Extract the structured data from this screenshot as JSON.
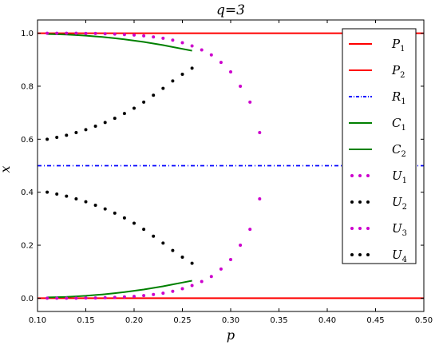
{
  "chart_data": {
    "type": "line",
    "title": "q=3",
    "xlabel": "p",
    "ylabel": "x",
    "xlim": [
      0.1,
      0.5
    ],
    "ylim": [
      -0.05,
      1.05
    ],
    "xticks": [
      "0.10",
      "0.15",
      "0.20",
      "0.25",
      "0.30",
      "0.35",
      "0.40",
      "0.45",
      "0.50"
    ],
    "yticks": [
      "0.0",
      "0.2",
      "0.4",
      "0.6",
      "0.8",
      "1.0"
    ],
    "legend_position": "right",
    "series": [
      {
        "name": "P1",
        "label_main": "P",
        "label_sub": "1",
        "style": "solid",
        "color": "#ff0000",
        "x": [
          0.1,
          0.5
        ],
        "y": [
          1.0,
          1.0
        ]
      },
      {
        "name": "P2",
        "label_main": "P",
        "label_sub": "2",
        "style": "solid",
        "color": "#ff0000",
        "x": [
          0.1,
          0.5
        ],
        "y": [
          0.0,
          0.0
        ]
      },
      {
        "name": "R1",
        "label_main": "R",
        "label_sub": "1",
        "style": "dashdot",
        "color": "#0000ff",
        "x": [
          0.1,
          0.5
        ],
        "y": [
          0.5,
          0.5
        ]
      },
      {
        "name": "C1",
        "label_main": "C",
        "label_sub": "1",
        "style": "solid",
        "color": "#008000",
        "x": [
          0.11,
          0.12,
          0.13,
          0.14,
          0.15,
          0.16,
          0.17,
          0.18,
          0.19,
          0.2,
          0.21,
          0.22,
          0.23,
          0.24,
          0.25,
          0.26
        ],
        "y": [
          0.997,
          0.996,
          0.995,
          0.993,
          0.991,
          0.988,
          0.985,
          0.981,
          0.977,
          0.972,
          0.967,
          0.961,
          0.955,
          0.948,
          0.941,
          0.934
        ]
      },
      {
        "name": "C2",
        "label_main": "C",
        "label_sub": "2",
        "style": "solid",
        "color": "#008000",
        "x": [
          0.11,
          0.12,
          0.13,
          0.14,
          0.15,
          0.16,
          0.17,
          0.18,
          0.19,
          0.2,
          0.21,
          0.22,
          0.23,
          0.24,
          0.25,
          0.26
        ],
        "y": [
          0.003,
          0.004,
          0.005,
          0.007,
          0.009,
          0.012,
          0.015,
          0.019,
          0.023,
          0.028,
          0.033,
          0.039,
          0.045,
          0.052,
          0.059,
          0.066
        ]
      },
      {
        "name": "U1",
        "label_main": "U",
        "label_sub": "1",
        "style": "dotted",
        "color": "#cc00cc",
        "x": [
          0.11,
          0.12,
          0.13,
          0.14,
          0.15,
          0.16,
          0.17,
          0.18,
          0.19,
          0.2,
          0.21,
          0.22,
          0.23,
          0.24,
          0.25,
          0.26,
          0.27,
          0.28,
          0.29,
          0.3,
          0.31,
          0.32,
          0.33
        ],
        "y": [
          1.0,
          1.0,
          1.0,
          1.0,
          0.999,
          0.999,
          0.998,
          0.997,
          0.995,
          0.993,
          0.99,
          0.986,
          0.981,
          0.974,
          0.964,
          0.952,
          0.937,
          0.918,
          0.89,
          0.854,
          0.8,
          0.74,
          0.625
        ]
      },
      {
        "name": "U2",
        "label_main": "U",
        "label_sub": "2",
        "style": "dotted",
        "color": "#000000",
        "x": [
          0.11,
          0.12,
          0.13,
          0.14,
          0.15,
          0.16,
          0.17,
          0.18,
          0.19,
          0.2,
          0.21,
          0.22,
          0.23,
          0.24,
          0.25,
          0.26
        ],
        "y": [
          0.6,
          0.607,
          0.615,
          0.625,
          0.636,
          0.649,
          0.663,
          0.679,
          0.697,
          0.717,
          0.74,
          0.766,
          0.792,
          0.82,
          0.845,
          0.868
        ]
      },
      {
        "name": "U3",
        "label_main": "U",
        "label_sub": "3",
        "style": "dotted",
        "color": "#cc00cc",
        "x": [
          0.11,
          0.12,
          0.13,
          0.14,
          0.15,
          0.16,
          0.17,
          0.18,
          0.19,
          0.2,
          0.21,
          0.22,
          0.23,
          0.24,
          0.25,
          0.26,
          0.27,
          0.28,
          0.29,
          0.3,
          0.31,
          0.32,
          0.33
        ],
        "y": [
          0.0,
          0.0,
          0.0,
          0.0,
          0.001,
          0.001,
          0.002,
          0.003,
          0.005,
          0.007,
          0.01,
          0.014,
          0.019,
          0.026,
          0.036,
          0.048,
          0.063,
          0.082,
          0.11,
          0.146,
          0.2,
          0.26,
          0.375
        ]
      },
      {
        "name": "U4",
        "label_main": "U",
        "label_sub": "4",
        "style": "dotted",
        "color": "#000000",
        "x": [
          0.11,
          0.12,
          0.13,
          0.14,
          0.15,
          0.16,
          0.17,
          0.18,
          0.19,
          0.2,
          0.21,
          0.22,
          0.23,
          0.24,
          0.25,
          0.26
        ],
        "y": [
          0.4,
          0.393,
          0.385,
          0.375,
          0.364,
          0.351,
          0.337,
          0.321,
          0.303,
          0.283,
          0.26,
          0.234,
          0.208,
          0.18,
          0.155,
          0.132
        ]
      }
    ]
  }
}
